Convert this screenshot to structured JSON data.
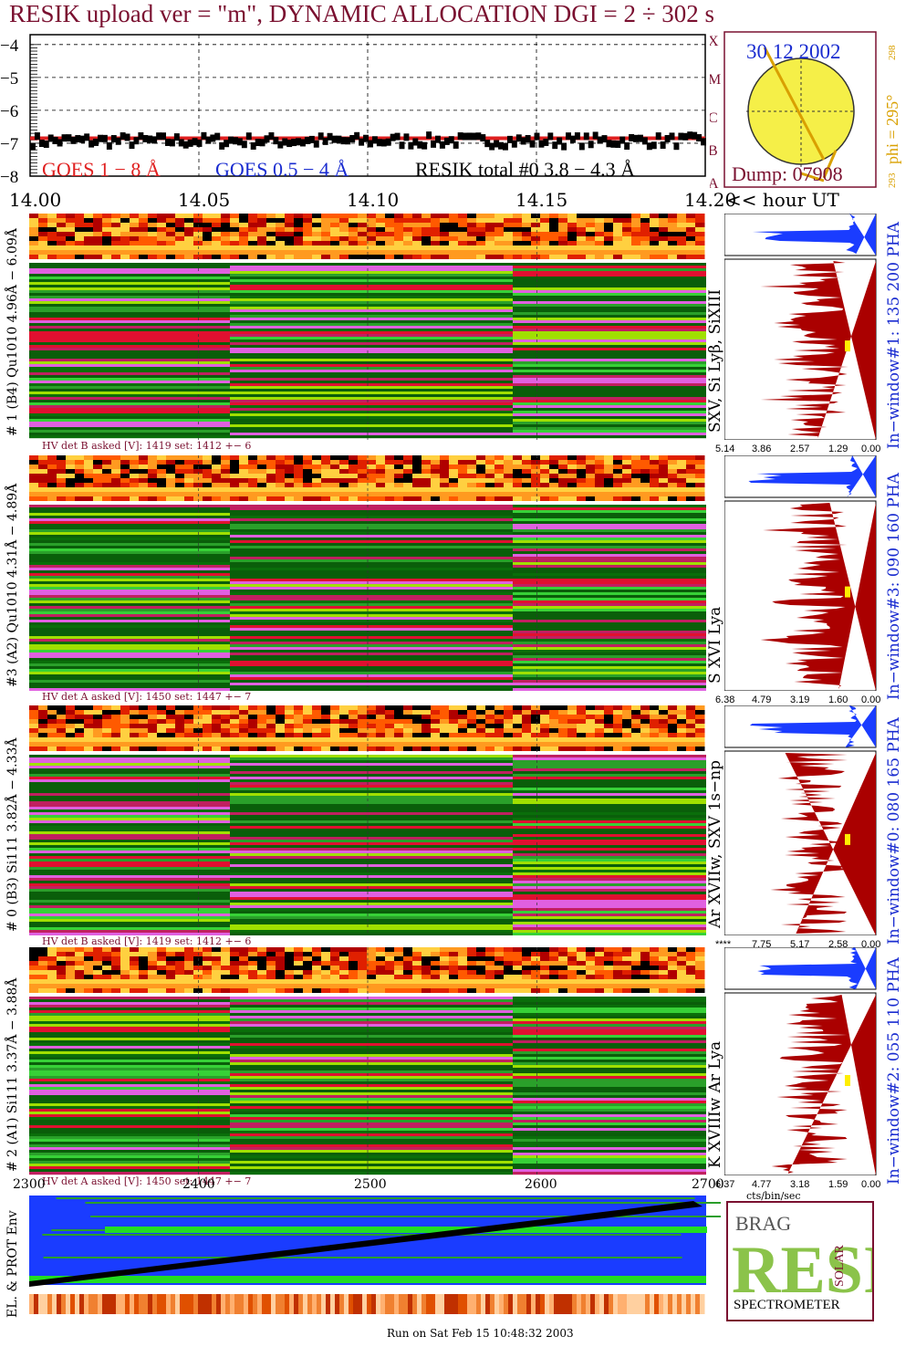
{
  "header": {
    "title": "RESIK upload ver = \"m\", DYNAMIC ALLOCATION  DGI =   2 ÷ 302 s"
  },
  "chart_data": [
    {
      "type": "line",
      "name_panel": "lightcurve",
      "y_ticks": [
        "−4",
        "−5",
        "−6",
        "−7",
        "−8"
      ],
      "ylim": [
        -8,
        -3.7
      ],
      "x_ticks": [
        "14.00",
        "14.05",
        "14.10",
        "14.15",
        "14.20"
      ],
      "xlim": [
        0,
        20
      ],
      "xunit": "<< hour UT",
      "legend": {
        "goes_long": "GOES 1 − 8 Å",
        "goes_short": "GOES 0.5 − 4 Å",
        "resik": "RESIK total #0  3.8 − 4.3 Å"
      },
      "series": [
        {
          "name": "GOES 1 − 8 Å",
          "color": "#e02020",
          "level": -6.85
        },
        {
          "name": "RESIK total #0  3.8 − 4.3 Å",
          "color": "#000000",
          "level": -6.9
        }
      ],
      "grid": true
    },
    {
      "type": "heatmap",
      "name_panel": "sun-disk",
      "date": "30 12 2002",
      "dump": "Dump: 07908",
      "phi_label": "phi = 295°",
      "phi_sup": "298",
      "phi_sub": "293",
      "side_letters": [
        "X",
        "M",
        "C",
        "B",
        "A"
      ]
    },
    {
      "type": "heatmap",
      "name_panel": "detectors",
      "detectors": [
        {
          "label": "# 1 (B4) Qu1010 4.96Å − 6.09Å",
          "lines": "SXV, Si Lyβ, SiXIII",
          "hv": "HV det B asked [V]:  1419 set:  1412 +−    6",
          "window": "In−window#1:  135 200 PHA",
          "ticks": [
            "5.14",
            "3.86",
            "2.57",
            "1.29",
            "0.00"
          ]
        },
        {
          "label": "#3 (A2) Qu1010  4.31Å − 4.89Å",
          "lines": "S XVI Lya",
          "hv": "HV det A asked [V]:  1450 set:  1447 +−    7",
          "window": "In−window#3:  090 160 PHA",
          "ticks": [
            "6.38",
            "4.79",
            "3.19",
            "1.60",
            "0.00"
          ]
        },
        {
          "label": "# 0 (B3) Si111  3.82Å − 4.33Å",
          "lines": "Ar XVIIw, SXV 1s−np",
          "hv": "HV det B asked [V]:  1419 set:  1412 +−    6",
          "window": "In−window#0:  080 165 PHA",
          "ticks": [
            "****",
            "7.75",
            "5.17",
            "2.58",
            "0.00"
          ]
        },
        {
          "label": "# 2 (A1) Si111  3.37Å − 3.88Å",
          "lines": "K XVIIIw  Ar Lya",
          "hv": "HV det A asked [V]:  1450 set:  1447 +−    7",
          "window": "In−window#2:  055 110 PHA",
          "ticks": [
            "6.37",
            "4.77",
            "3.18",
            "1.59",
            "0.00"
          ]
        }
      ],
      "spectrum_unit": "cts/bin/sec"
    },
    {
      "type": "heatmap",
      "name_panel": "particle-env",
      "x_ticks": [
        "2300",
        "2400",
        "2500",
        "2600",
        "2700"
      ],
      "ylabel": "EL. & PROT Env"
    }
  ],
  "logo": {
    "letters": "RESIK",
    "top_left": "BRAG",
    "side": "SOLAR",
    "bottom": "SPECTROMETER"
  },
  "footer": {
    "run": "Run on Sat Feb 15 10:48:32 2003"
  },
  "colors": {
    "title": "#7a1030",
    "green": "#0a5e0a",
    "blue": "#1a3cff",
    "dark_red": "#aa0000",
    "sun": "#f5ef48"
  }
}
